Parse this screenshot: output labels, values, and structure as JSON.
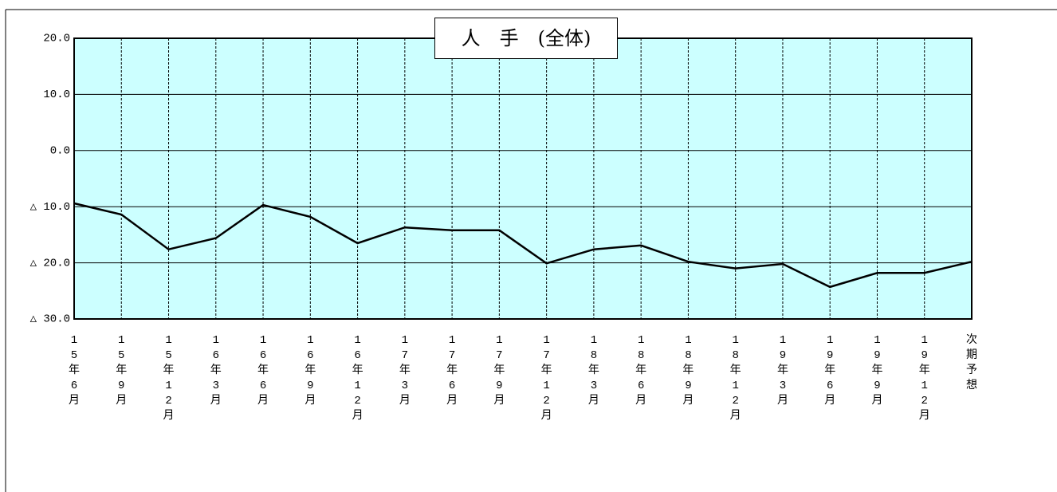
{
  "chart_data": {
    "type": "line",
    "title": "人　手　(全体)",
    "categories": [
      "15年6月",
      "15年9月",
      "15年12月",
      "16年3月",
      "16年6月",
      "16年9月",
      "16年12月",
      "17年3月",
      "17年6月",
      "17年9月",
      "17年12月",
      "18年3月",
      "18年6月",
      "18年9月",
      "18年12月",
      "19年3月",
      "19年6月",
      "19年9月",
      "19年12月",
      "次期予想"
    ],
    "series": [
      {
        "name": "人手",
        "color": "#000000",
        "values": [
          -9.4,
          -11.4,
          -17.6,
          -15.6,
          -9.7,
          -11.8,
          -16.5,
          -13.7,
          -14.2,
          -14.2,
          -20.1,
          -17.6,
          -16.9,
          -19.8,
          -21.0,
          -20.2,
          -24.3,
          -21.8,
          -21.8,
          -19.8
        ]
      }
    ],
    "ylim": [
      -30,
      20
    ],
    "yticks": [
      {
        "value": -30,
        "label": "△ 30.0"
      },
      {
        "value": -20,
        "label": "△ 20.0"
      },
      {
        "value": -10,
        "label": "△ 10.0"
      },
      {
        "value": 0,
        "label": "0.0"
      },
      {
        "value": 10,
        "label": "10.0"
      },
      {
        "value": 20,
        "label": "20.0"
      }
    ],
    "grid": true,
    "background": "#ccffff"
  }
}
